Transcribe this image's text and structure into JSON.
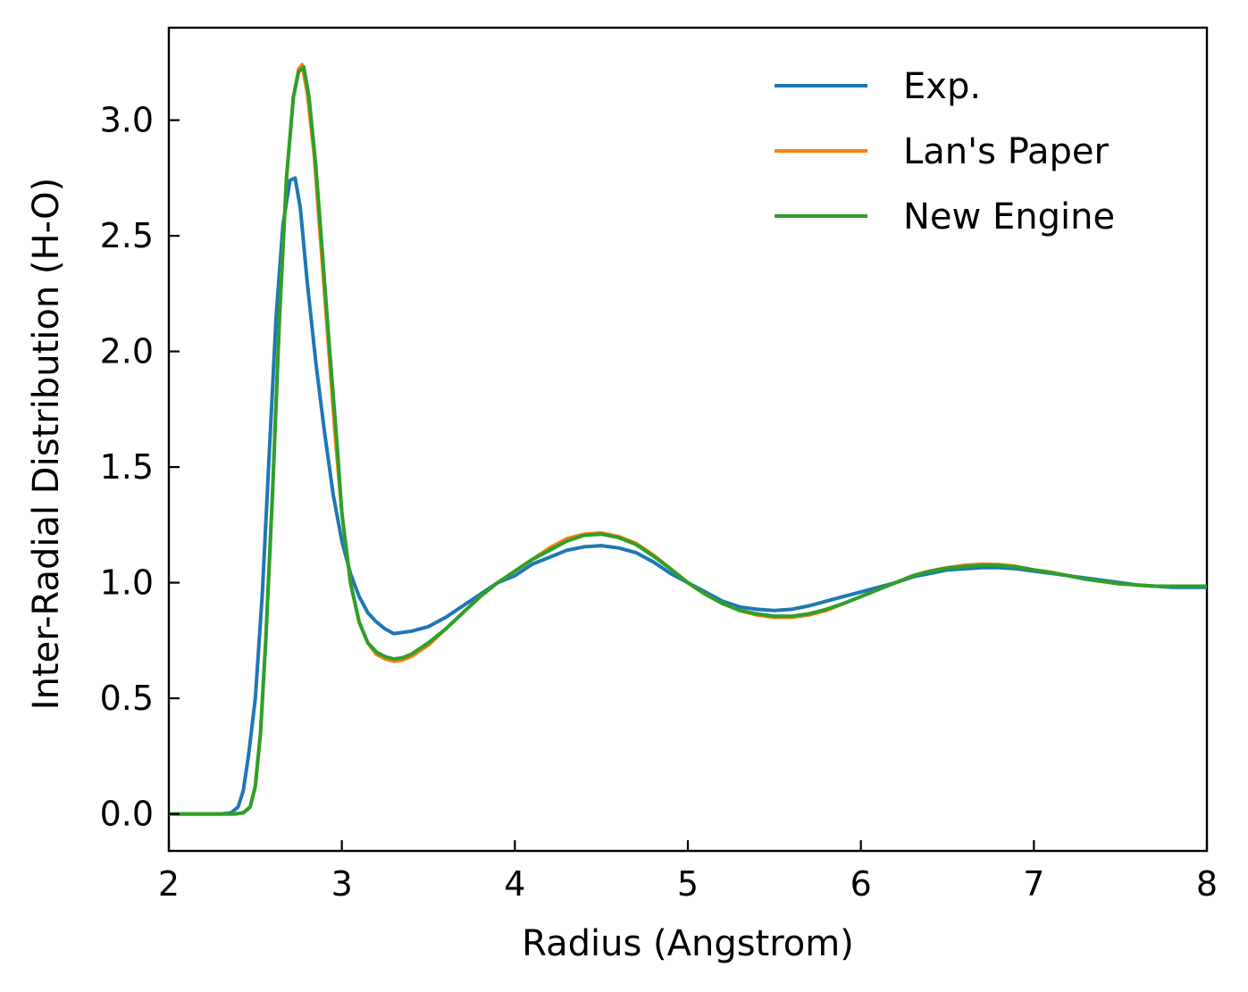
{
  "chart_data": {
    "type": "line",
    "title": "",
    "xlabel": "Radius (Angstrom)",
    "ylabel": "Inter-Radial Distribution (H-O)",
    "xlim": [
      2,
      8
    ],
    "ylim": [
      -0.16,
      3.4
    ],
    "xticks": [
      "2",
      "3",
      "4",
      "5",
      "6",
      "7",
      "8"
    ],
    "yticks": [
      "0.0",
      "0.5",
      "1.0",
      "1.5",
      "2.0",
      "2.5",
      "3.0"
    ],
    "grid": false,
    "legend_position": "top-right",
    "series": [
      {
        "name": "Exp.",
        "color": "#1f77b4",
        "points": [
          [
            2.0,
            0.0
          ],
          [
            2.3,
            0.0
          ],
          [
            2.36,
            0.005
          ],
          [
            2.4,
            0.03
          ],
          [
            2.43,
            0.1
          ],
          [
            2.46,
            0.25
          ],
          [
            2.5,
            0.5
          ],
          [
            2.54,
            0.95
          ],
          [
            2.58,
            1.55
          ],
          [
            2.62,
            2.15
          ],
          [
            2.66,
            2.55
          ],
          [
            2.7,
            2.74
          ],
          [
            2.73,
            2.75
          ],
          [
            2.76,
            2.62
          ],
          [
            2.8,
            2.3
          ],
          [
            2.85,
            1.95
          ],
          [
            2.9,
            1.65
          ],
          [
            2.95,
            1.38
          ],
          [
            3.0,
            1.18
          ],
          [
            3.05,
            1.04
          ],
          [
            3.1,
            0.94
          ],
          [
            3.15,
            0.87
          ],
          [
            3.2,
            0.83
          ],
          [
            3.25,
            0.8
          ],
          [
            3.3,
            0.78
          ],
          [
            3.35,
            0.785
          ],
          [
            3.4,
            0.79
          ],
          [
            3.45,
            0.8
          ],
          [
            3.5,
            0.81
          ],
          [
            3.6,
            0.85
          ],
          [
            3.7,
            0.9
          ],
          [
            3.8,
            0.95
          ],
          [
            3.9,
            1.0
          ],
          [
            4.0,
            1.03
          ],
          [
            4.1,
            1.08
          ],
          [
            4.2,
            1.11
          ],
          [
            4.3,
            1.14
          ],
          [
            4.4,
            1.155
          ],
          [
            4.5,
            1.16
          ],
          [
            4.6,
            1.15
          ],
          [
            4.7,
            1.13
          ],
          [
            4.8,
            1.09
          ],
          [
            4.9,
            1.04
          ],
          [
            5.0,
            1.0
          ],
          [
            5.1,
            0.96
          ],
          [
            5.2,
            0.92
          ],
          [
            5.3,
            0.895
          ],
          [
            5.4,
            0.885
          ],
          [
            5.5,
            0.88
          ],
          [
            5.6,
            0.885
          ],
          [
            5.7,
            0.9
          ],
          [
            5.8,
            0.92
          ],
          [
            5.9,
            0.94
          ],
          [
            6.0,
            0.96
          ],
          [
            6.1,
            0.98
          ],
          [
            6.2,
            1.0
          ],
          [
            6.3,
            1.025
          ],
          [
            6.4,
            1.04
          ],
          [
            6.5,
            1.055
          ],
          [
            6.6,
            1.06
          ],
          [
            6.7,
            1.065
          ],
          [
            6.8,
            1.065
          ],
          [
            6.9,
            1.06
          ],
          [
            7.0,
            1.05
          ],
          [
            7.1,
            1.04
          ],
          [
            7.2,
            1.03
          ],
          [
            7.3,
            1.02
          ],
          [
            7.4,
            1.01
          ],
          [
            7.5,
            1.0
          ],
          [
            7.6,
            0.99
          ],
          [
            7.7,
            0.985
          ],
          [
            7.8,
            0.98
          ],
          [
            7.9,
            0.98
          ],
          [
            8.0,
            0.98
          ]
        ]
      },
      {
        "name": "Lan's Paper",
        "color": "#ff7f0e",
        "points": [
          [
            2.0,
            0.0
          ],
          [
            2.38,
            0.0
          ],
          [
            2.43,
            0.005
          ],
          [
            2.47,
            0.03
          ],
          [
            2.5,
            0.12
          ],
          [
            2.53,
            0.35
          ],
          [
            2.56,
            0.75
          ],
          [
            2.6,
            1.4
          ],
          [
            2.64,
            2.15
          ],
          [
            2.68,
            2.75
          ],
          [
            2.72,
            3.1
          ],
          [
            2.75,
            3.22
          ],
          [
            2.77,
            3.24
          ],
          [
            2.8,
            3.12
          ],
          [
            2.84,
            2.85
          ],
          [
            2.88,
            2.45
          ],
          [
            2.92,
            2.05
          ],
          [
            2.96,
            1.65
          ],
          [
            3.0,
            1.3
          ],
          [
            3.05,
            1.0
          ],
          [
            3.1,
            0.83
          ],
          [
            3.15,
            0.74
          ],
          [
            3.2,
            0.69
          ],
          [
            3.25,
            0.67
          ],
          [
            3.3,
            0.66
          ],
          [
            3.35,
            0.665
          ],
          [
            3.4,
            0.68
          ],
          [
            3.5,
            0.73
          ],
          [
            3.6,
            0.8
          ],
          [
            3.7,
            0.87
          ],
          [
            3.8,
            0.94
          ],
          [
            3.9,
            1.0
          ],
          [
            4.0,
            1.05
          ],
          [
            4.1,
            1.1
          ],
          [
            4.2,
            1.15
          ],
          [
            4.3,
            1.19
          ],
          [
            4.4,
            1.21
          ],
          [
            4.5,
            1.215
          ],
          [
            4.6,
            1.2
          ],
          [
            4.7,
            1.17
          ],
          [
            4.8,
            1.12
          ],
          [
            4.9,
            1.06
          ],
          [
            5.0,
            1.0
          ],
          [
            5.1,
            0.95
          ],
          [
            5.2,
            0.91
          ],
          [
            5.3,
            0.88
          ],
          [
            5.4,
            0.86
          ],
          [
            5.5,
            0.85
          ],
          [
            5.6,
            0.85
          ],
          [
            5.7,
            0.86
          ],
          [
            5.8,
            0.88
          ],
          [
            5.9,
            0.91
          ],
          [
            6.0,
            0.94
          ],
          [
            6.1,
            0.97
          ],
          [
            6.2,
            1.0
          ],
          [
            6.3,
            1.03
          ],
          [
            6.4,
            1.05
          ],
          [
            6.5,
            1.065
          ],
          [
            6.6,
            1.075
          ],
          [
            6.7,
            1.08
          ],
          [
            6.8,
            1.078
          ],
          [
            6.9,
            1.07
          ],
          [
            7.0,
            1.055
          ],
          [
            7.1,
            1.045
          ],
          [
            7.2,
            1.03
          ],
          [
            7.3,
            1.015
          ],
          [
            7.4,
            1.005
          ],
          [
            7.5,
            0.995
          ],
          [
            7.6,
            0.99
          ],
          [
            7.7,
            0.985
          ],
          [
            7.8,
            0.985
          ],
          [
            7.9,
            0.985
          ],
          [
            8.0,
            0.985
          ]
        ]
      },
      {
        "name": "New Engine",
        "color": "#2ca02c",
        "points": [
          [
            2.0,
            0.0
          ],
          [
            2.38,
            0.0
          ],
          [
            2.43,
            0.005
          ],
          [
            2.47,
            0.03
          ],
          [
            2.5,
            0.12
          ],
          [
            2.53,
            0.35
          ],
          [
            2.56,
            0.75
          ],
          [
            2.6,
            1.4
          ],
          [
            2.64,
            2.15
          ],
          [
            2.68,
            2.75
          ],
          [
            2.72,
            3.1
          ],
          [
            2.75,
            3.21
          ],
          [
            2.78,
            3.23
          ],
          [
            2.81,
            3.1
          ],
          [
            2.85,
            2.8
          ],
          [
            2.89,
            2.4
          ],
          [
            2.93,
            2.0
          ],
          [
            2.97,
            1.62
          ],
          [
            3.0,
            1.3
          ],
          [
            3.05,
            1.0
          ],
          [
            3.1,
            0.83
          ],
          [
            3.15,
            0.74
          ],
          [
            3.2,
            0.7
          ],
          [
            3.25,
            0.68
          ],
          [
            3.3,
            0.67
          ],
          [
            3.35,
            0.675
          ],
          [
            3.4,
            0.69
          ],
          [
            3.5,
            0.74
          ],
          [
            3.6,
            0.8
          ],
          [
            3.7,
            0.87
          ],
          [
            3.8,
            0.94
          ],
          [
            3.9,
            1.0
          ],
          [
            4.0,
            1.05
          ],
          [
            4.1,
            1.1
          ],
          [
            4.2,
            1.14
          ],
          [
            4.3,
            1.18
          ],
          [
            4.4,
            1.205
          ],
          [
            4.5,
            1.21
          ],
          [
            4.6,
            1.195
          ],
          [
            4.7,
            1.165
          ],
          [
            4.8,
            1.115
          ],
          [
            4.9,
            1.06
          ],
          [
            5.0,
            1.0
          ],
          [
            5.1,
            0.95
          ],
          [
            5.2,
            0.91
          ],
          [
            5.3,
            0.88
          ],
          [
            5.4,
            0.865
          ],
          [
            5.5,
            0.855
          ],
          [
            5.6,
            0.855
          ],
          [
            5.7,
            0.865
          ],
          [
            5.8,
            0.885
          ],
          [
            5.9,
            0.91
          ],
          [
            6.0,
            0.94
          ],
          [
            6.1,
            0.97
          ],
          [
            6.2,
            1.0
          ],
          [
            6.3,
            1.03
          ],
          [
            6.4,
            1.05
          ],
          [
            6.5,
            1.063
          ],
          [
            6.6,
            1.07
          ],
          [
            6.7,
            1.075
          ],
          [
            6.8,
            1.075
          ],
          [
            6.9,
            1.068
          ],
          [
            7.0,
            1.055
          ],
          [
            7.1,
            1.043
          ],
          [
            7.2,
            1.03
          ],
          [
            7.3,
            1.015
          ],
          [
            7.4,
            1.005
          ],
          [
            7.5,
            0.995
          ],
          [
            7.6,
            0.99
          ],
          [
            7.7,
            0.985
          ],
          [
            7.8,
            0.985
          ],
          [
            7.9,
            0.985
          ],
          [
            8.0,
            0.985
          ]
        ]
      }
    ]
  }
}
